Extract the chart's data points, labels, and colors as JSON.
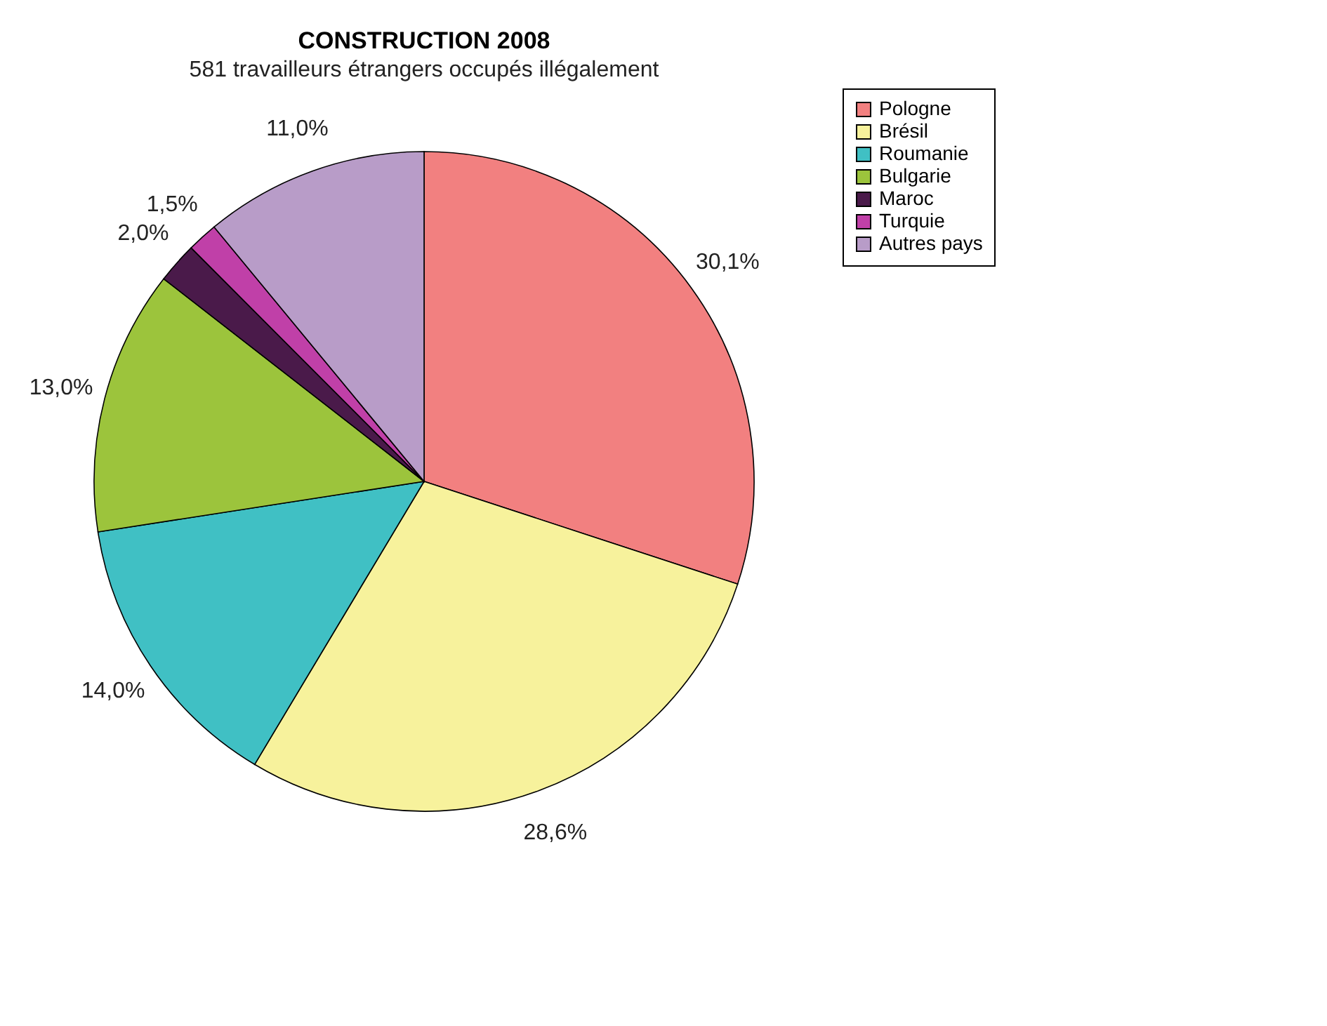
{
  "chart_data": {
    "type": "pie",
    "title": "CONSTRUCTION 2008",
    "subtitle": "581 travailleurs étrangers occupés illégalement",
    "categories": [
      "Pologne",
      "Brésil",
      "Roumanie",
      "Bulgarie",
      "Maroc",
      "Turquie",
      "Autres pays"
    ],
    "values": [
      30.1,
      28.6,
      14.0,
      13.0,
      2.0,
      1.5,
      11.0
    ],
    "colors": [
      "#f28080",
      "#f7f29c",
      "#40c0c4",
      "#9cc43c",
      "#4a1a4a",
      "#c040a8",
      "#b89cc8"
    ],
    "value_labels": [
      "30,1%",
      "28,6%",
      "14,0%",
      "13,0%",
      "2,0%",
      "1,5%",
      "11,0%"
    ],
    "legend": "right"
  }
}
